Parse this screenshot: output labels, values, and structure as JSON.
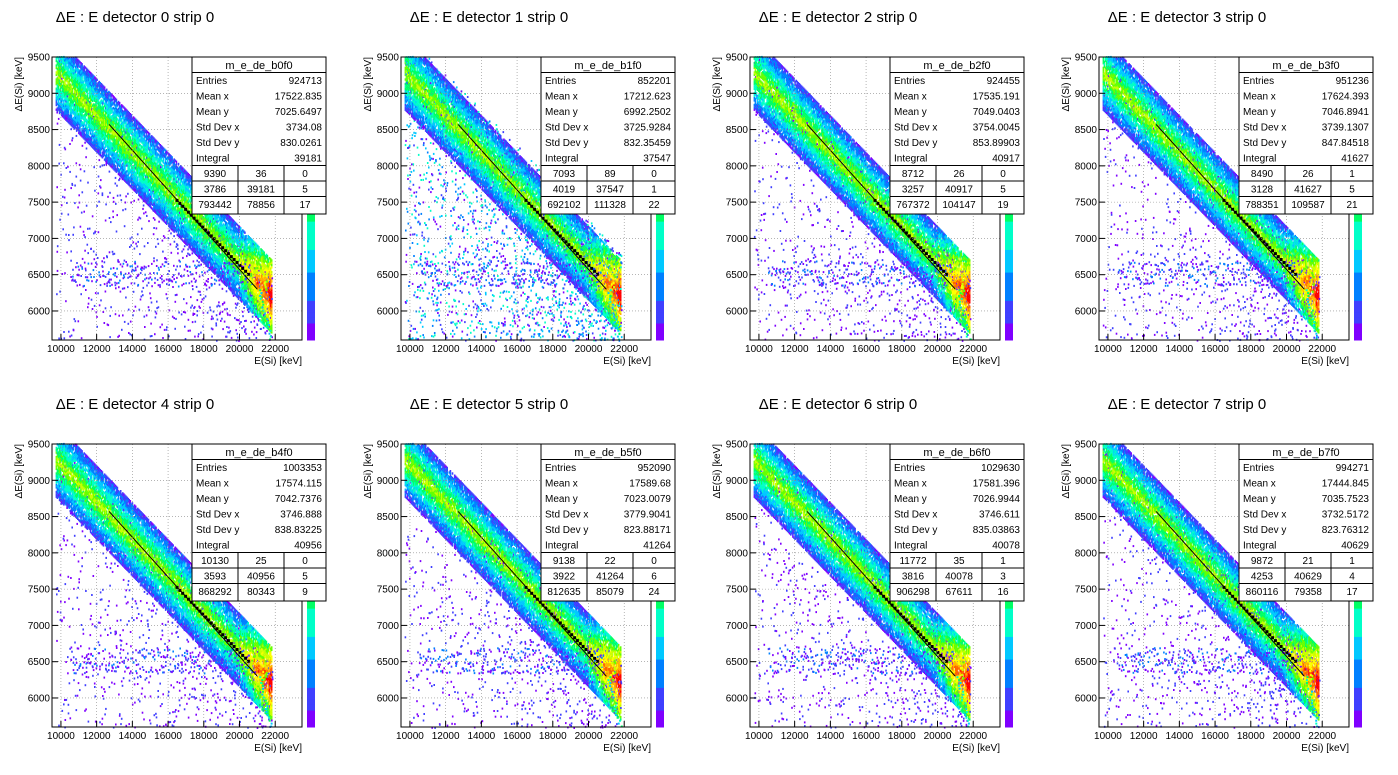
{
  "chart_data": [
    {
      "type": "heatmap",
      "name": "m_e_de_b0f0",
      "title": "ΔE : E detector 0 strip 0",
      "xlabel": "E(Si) [keV]",
      "ylabel": "ΔE(Si) [keV]",
      "xlim": [
        9500,
        23500
      ],
      "ylim": [
        5600,
        9500
      ],
      "xticks": [
        "10000",
        "12000",
        "14000",
        "16000",
        "18000",
        "20000",
        "22000"
      ],
      "yticks": [
        "6000",
        "6500",
        "7000",
        "7500",
        "8000",
        "8500",
        "9000",
        "9500"
      ],
      "variant": "sparse",
      "stats": [
        {
          "label": "Entries",
          "value": "924713"
        },
        {
          "label": "Mean x",
          "value": "17522.835"
        },
        {
          "label": "Mean y",
          "value": "7025.6497"
        },
        {
          "label": "Std Dev x",
          "value": "3734.08"
        },
        {
          "label": "Std Dev y",
          "value": "830.0261"
        },
        {
          "label": "Integral",
          "value": "39181"
        }
      ],
      "grid": [
        [
          "9390",
          "36",
          "0"
        ],
        [
          "3786",
          "39181",
          "5"
        ],
        [
          "793442",
          "78856",
          "17"
        ]
      ]
    },
    {
      "type": "heatmap",
      "name": "m_e_de_b1f0",
      "title": "ΔE : E detector 1 strip 0",
      "xlabel": "E(Si) [keV]",
      "ylabel": "ΔE(Si) [keV]",
      "xlim": [
        9500,
        23500
      ],
      "ylim": [
        5600,
        9500
      ],
      "xticks": [
        "10000",
        "12000",
        "14000",
        "16000",
        "18000",
        "20000",
        "22000"
      ],
      "yticks": [
        "6000",
        "6500",
        "7000",
        "7500",
        "8000",
        "8500",
        "9000",
        "9500"
      ],
      "variant": "dense",
      "stats": [
        {
          "label": "Entries",
          "value": "852201"
        },
        {
          "label": "Mean x",
          "value": "17212.623"
        },
        {
          "label": "Mean y",
          "value": "6992.2502"
        },
        {
          "label": "Std Dev x",
          "value": "3725.9284"
        },
        {
          "label": "Std Dev y",
          "value": "832.35459"
        },
        {
          "label": "Integral",
          "value": "37547"
        }
      ],
      "grid": [
        [
          "7093",
          "89",
          "0"
        ],
        [
          "4019",
          "37547",
          "1"
        ],
        [
          "692102",
          "111328",
          "22"
        ]
      ]
    },
    {
      "type": "heatmap",
      "name": "m_e_de_b2f0",
      "title": "ΔE : E detector 2 strip 0",
      "xlabel": "E(Si) [keV]",
      "ylabel": "ΔE(Si) [keV]",
      "xlim": [
        9500,
        23500
      ],
      "ylim": [
        5600,
        9500
      ],
      "xticks": [
        "10000",
        "12000",
        "14000",
        "16000",
        "18000",
        "20000",
        "22000"
      ],
      "yticks": [
        "6000",
        "6500",
        "7000",
        "7500",
        "8000",
        "8500",
        "9000",
        "9500"
      ],
      "variant": "sparse",
      "stats": [
        {
          "label": "Entries",
          "value": "924455"
        },
        {
          "label": "Mean x",
          "value": "17535.191"
        },
        {
          "label": "Mean y",
          "value": "7049.0403"
        },
        {
          "label": "Std Dev x",
          "value": "3754.0045"
        },
        {
          "label": "Std Dev y",
          "value": "853.89903"
        },
        {
          "label": "Integral",
          "value": "40917"
        }
      ],
      "grid": [
        [
          "8712",
          "26",
          "0"
        ],
        [
          "3257",
          "40917",
          "5"
        ],
        [
          "767372",
          "104147",
          "19"
        ]
      ]
    },
    {
      "type": "heatmap",
      "name": "m_e_de_b3f0",
      "title": "ΔE : E detector 3 strip 0",
      "xlabel": "E(Si) [keV]",
      "ylabel": "ΔE(Si) [keV]",
      "xlim": [
        9500,
        23500
      ],
      "ylim": [
        5600,
        9500
      ],
      "xticks": [
        "10000",
        "12000",
        "14000",
        "16000",
        "18000",
        "20000",
        "22000"
      ],
      "yticks": [
        "6000",
        "6500",
        "7000",
        "7500",
        "8000",
        "8500",
        "9000",
        "9500"
      ],
      "variant": "sparse",
      "stats": [
        {
          "label": "Entries",
          "value": "951236"
        },
        {
          "label": "Mean x",
          "value": "17624.393"
        },
        {
          "label": "Mean y",
          "value": "7046.8941"
        },
        {
          "label": "Std Dev x",
          "value": "3739.1307"
        },
        {
          "label": "Std Dev y",
          "value": "847.84518"
        },
        {
          "label": "Integral",
          "value": "41627"
        }
      ],
      "grid": [
        [
          "8490",
          "26",
          "1"
        ],
        [
          "3128",
          "41627",
          "5"
        ],
        [
          "788351",
          "109587",
          "21"
        ]
      ]
    },
    {
      "type": "heatmap",
      "name": "m_e_de_b4f0",
      "title": "ΔE : E detector 4 strip 0",
      "xlabel": "E(Si) [keV]",
      "ylabel": "ΔE(Si) [keV]",
      "xlim": [
        9500,
        23500
      ],
      "ylim": [
        5600,
        9500
      ],
      "xticks": [
        "10000",
        "12000",
        "14000",
        "16000",
        "18000",
        "20000",
        "22000"
      ],
      "yticks": [
        "6000",
        "6500",
        "7000",
        "7500",
        "8000",
        "8500",
        "9000",
        "9500"
      ],
      "variant": "sparse",
      "stats": [
        {
          "label": "Entries",
          "value": "1003353"
        },
        {
          "label": "Mean x",
          "value": "17574.115"
        },
        {
          "label": "Mean y",
          "value": "7042.7376"
        },
        {
          "label": "Std Dev x",
          "value": "3746.888"
        },
        {
          "label": "Std Dev y",
          "value": "838.83225"
        },
        {
          "label": "Integral",
          "value": "40956"
        }
      ],
      "grid": [
        [
          "10130",
          "25",
          "0"
        ],
        [
          "3593",
          "40956",
          "5"
        ],
        [
          "868292",
          "80343",
          "9"
        ]
      ]
    },
    {
      "type": "heatmap",
      "name": "m_e_de_b5f0",
      "title": "ΔE : E detector 5 strip 0",
      "xlabel": "E(Si) [keV]",
      "ylabel": "ΔE(Si) [keV]",
      "xlim": [
        9500,
        23500
      ],
      "ylim": [
        5600,
        9500
      ],
      "xticks": [
        "10000",
        "12000",
        "14000",
        "16000",
        "18000",
        "20000",
        "22000"
      ],
      "yticks": [
        "6000",
        "6500",
        "7000",
        "7500",
        "8000",
        "8500",
        "9000",
        "9500"
      ],
      "variant": "sparse",
      "stats": [
        {
          "label": "Entries",
          "value": "952090"
        },
        {
          "label": "Mean x",
          "value": "17589.68"
        },
        {
          "label": "Mean y",
          "value": "7023.0079"
        },
        {
          "label": "Std Dev x",
          "value": "3779.9041"
        },
        {
          "label": "Std Dev y",
          "value": "823.88171"
        },
        {
          "label": "Integral",
          "value": "41264"
        }
      ],
      "grid": [
        [
          "9138",
          "22",
          "0"
        ],
        [
          "3922",
          "41264",
          "6"
        ],
        [
          "812635",
          "85079",
          "24"
        ]
      ]
    },
    {
      "type": "heatmap",
      "name": "m_e_de_b6f0",
      "title": "ΔE : E detector 6 strip 0",
      "xlabel": "E(Si) [keV]",
      "ylabel": "ΔE(Si) [keV]",
      "xlim": [
        9500,
        23500
      ],
      "ylim": [
        5600,
        9500
      ],
      "xticks": [
        "10000",
        "12000",
        "14000",
        "16000",
        "18000",
        "20000",
        "22000"
      ],
      "yticks": [
        "6000",
        "6500",
        "7000",
        "7500",
        "8000",
        "8500",
        "9000",
        "9500"
      ],
      "variant": "sparse",
      "stats": [
        {
          "label": "Entries",
          "value": "1029630"
        },
        {
          "label": "Mean x",
          "value": "17581.396"
        },
        {
          "label": "Mean y",
          "value": "7026.9944"
        },
        {
          "label": "Std Dev x",
          "value": "3746.611"
        },
        {
          "label": "Std Dev y",
          "value": "835.03863"
        },
        {
          "label": "Integral",
          "value": "40078"
        }
      ],
      "grid": [
        [
          "11772",
          "35",
          "1"
        ],
        [
          "3816",
          "40078",
          "3"
        ],
        [
          "906298",
          "67611",
          "16"
        ]
      ]
    },
    {
      "type": "heatmap",
      "name": "m_e_de_b7f0",
      "title": "ΔE : E detector 7 strip 0",
      "xlabel": "E(Si) [keV]",
      "ylabel": "ΔE(Si) [keV]",
      "xlim": [
        9500,
        23500
      ],
      "ylim": [
        5600,
        9500
      ],
      "xticks": [
        "10000",
        "12000",
        "14000",
        "16000",
        "18000",
        "20000",
        "22000"
      ],
      "yticks": [
        "6000",
        "6500",
        "7000",
        "7500",
        "8000",
        "8500",
        "9000",
        "9500"
      ],
      "variant": "sparse",
      "stats": [
        {
          "label": "Entries",
          "value": "994271"
        },
        {
          "label": "Mean x",
          "value": "17444.845"
        },
        {
          "label": "Mean y",
          "value": "7035.7523"
        },
        {
          "label": "Std Dev x",
          "value": "3732.5172"
        },
        {
          "label": "Std Dev y",
          "value": "823.76312"
        },
        {
          "label": "Integral",
          "value": "40629"
        }
      ],
      "grid": [
        [
          "9872",
          "21",
          "1"
        ],
        [
          "4253",
          "40629",
          "4"
        ],
        [
          "860116",
          "79358",
          "17"
        ]
      ]
    }
  ],
  "colors": {
    "palette": [
      "#7f00ff",
      "#3f3fff",
      "#0080ff",
      "#00c8ff",
      "#00ffc8",
      "#00ff64",
      "#64ff00",
      "#c8ff00",
      "#ffff00",
      "#ffb400",
      "#ff6400",
      "#ff0000"
    ],
    "fit_line": "#000000",
    "grid": "#888888"
  }
}
